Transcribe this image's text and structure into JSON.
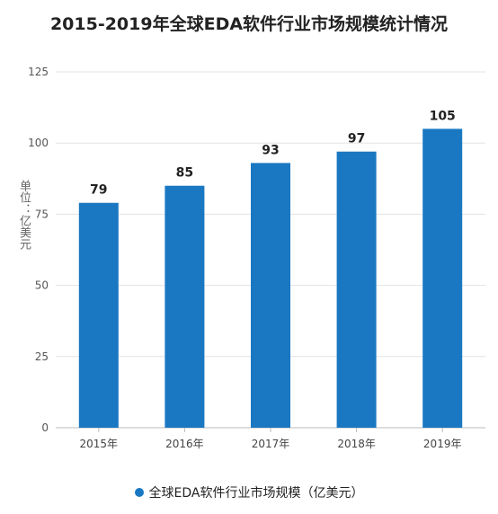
{
  "chart_data": {
    "type": "bar",
    "title": "2015-2019年全球EDA软件行业市场规模统计情况",
    "xlabel": "",
    "ylabel": "单位：亿美元",
    "categories": [
      "2015年",
      "2016年",
      "2017年",
      "2018年",
      "2019年"
    ],
    "series": [
      {
        "name": "全球EDA软件行业市场规模（亿美元）",
        "values": [
          79,
          85,
          93,
          97,
          105
        ],
        "color": "#1a78c2"
      }
    ],
    "ylim": [
      0,
      125
    ],
    "yticks": [
      0,
      25,
      50,
      75,
      100,
      125
    ],
    "grid": true,
    "legend_position": "bottom"
  }
}
